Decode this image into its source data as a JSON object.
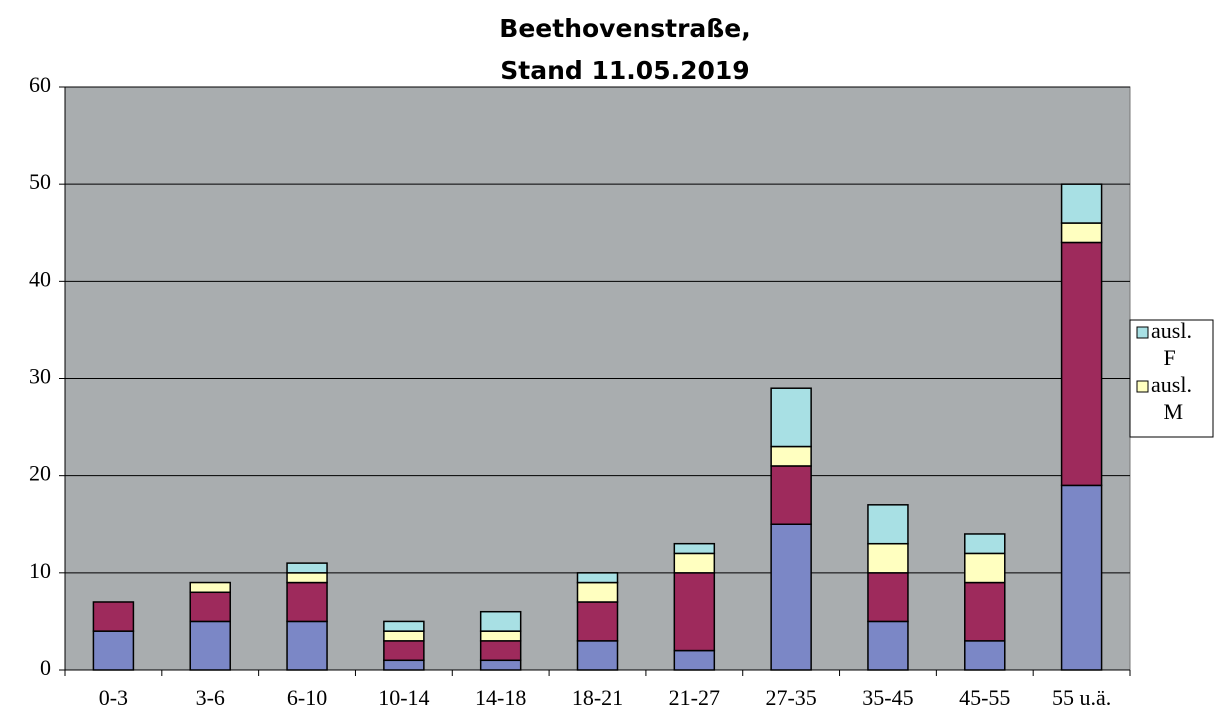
{
  "chart_data": {
    "type": "bar",
    "stacked": true,
    "title": [
      "Beethovenstraße,",
      "Stand 11.05.2019"
    ],
    "categories": [
      "0-3",
      "3-6",
      "6-10",
      "10-14",
      "14-18",
      "18-21",
      "21-27",
      "27-35",
      "35-45",
      "45-55",
      "55 u.ä."
    ],
    "series": [
      {
        "color": "#7b87c6",
        "values": [
          4,
          5,
          5,
          1,
          1,
          3,
          2,
          15,
          5,
          3,
          19
        ]
      },
      {
        "color": "#9e2a5c",
        "values": [
          3,
          3,
          4,
          2,
          2,
          4,
          8,
          6,
          5,
          6,
          25
        ]
      },
      {
        "name": "ausl. M",
        "color": "#ffffc0",
        "values": [
          0,
          1,
          1,
          1,
          1,
          2,
          2,
          2,
          3,
          3,
          2
        ]
      },
      {
        "name": "ausl. F",
        "color": "#a8e0e4",
        "values": [
          0,
          0,
          1,
          1,
          2,
          1,
          1,
          6,
          4,
          2,
          4
        ]
      }
    ],
    "legend_order": [
      3,
      2
    ],
    "ylim": [
      0,
      60
    ],
    "yticks": [
      0,
      10,
      20,
      30,
      40,
      50,
      60
    ],
    "grid": true,
    "plot_background": "#a9adaf"
  }
}
